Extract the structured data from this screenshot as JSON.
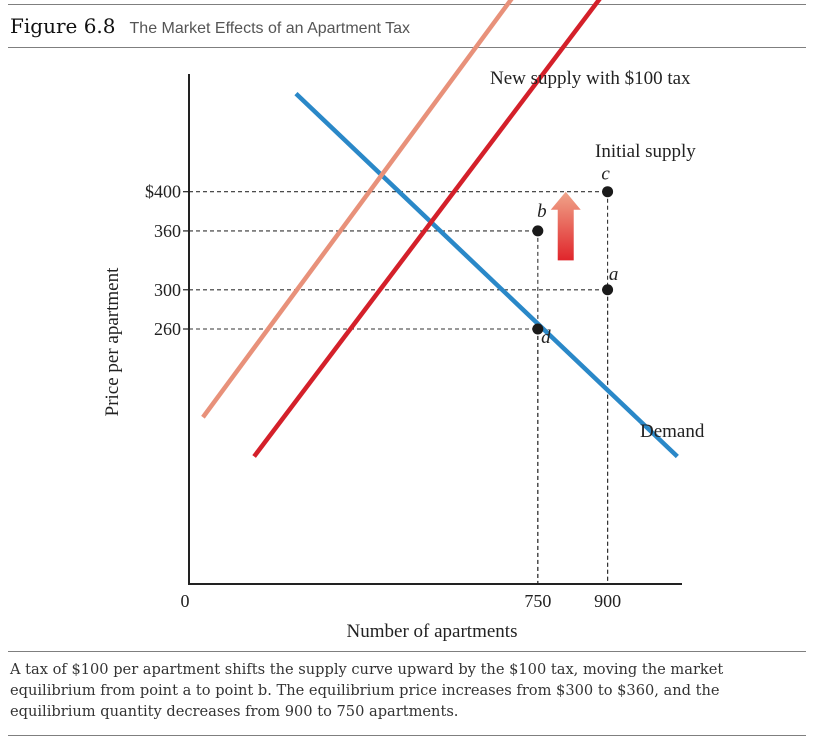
{
  "figure": {
    "number": "Figure 6.8",
    "title": "The Market Effects of an Apartment Tax"
  },
  "caption": "A tax of $100 per apartment shifts the supply curve upward by the $100 tax, moving the market equilibrium from point a to point b. The equilibrium price increases from $300 to $360, and the equilibrium quantity decreases from 900 to 750 apartments.",
  "colors": {
    "demand": "#2a88c8",
    "initial_supply": "#d4202a",
    "new_supply": "#e8917a",
    "arrow_top": "#f0a58a",
    "arrow_bottom": "#e0252b",
    "points": "#1a1a1a"
  },
  "chart_data": {
    "type": "line",
    "xlabel": "Number of apartments",
    "ylabel": "Price per apartment",
    "x_ticks": [
      {
        "value": 0,
        "label": "0"
      },
      {
        "value": 750,
        "label": "750"
      },
      {
        "value": 900,
        "label": "900"
      }
    ],
    "y_ticks": [
      {
        "value": 260,
        "label": "260"
      },
      {
        "value": 300,
        "label": "300"
      },
      {
        "value": 360,
        "label": "360"
      },
      {
        "value": 400,
        "label": "$400"
      }
    ],
    "xlim": [
      0,
      1060
    ],
    "ylim": [
      0,
      520
    ],
    "grid": false,
    "series": [
      {
        "name": "Demand",
        "key": "demand",
        "points": [
          [
            230,
            500
          ],
          [
            1050,
            130
          ]
        ]
      },
      {
        "name": "Initial supply",
        "key": "initial_supply",
        "points": [
          [
            140,
            130
          ],
          [
            1000,
            670
          ]
        ]
      },
      {
        "name": "New supply with $100 tax",
        "key": "new_supply",
        "points": [
          [
            30,
            170
          ],
          [
            870,
            710
          ]
        ]
      }
    ],
    "points": [
      {
        "label": "a",
        "x": 900,
        "y": 300
      },
      {
        "label": "b",
        "x": 750,
        "y": 360
      },
      {
        "label": "c",
        "x": 900,
        "y": 400
      },
      {
        "label": "d",
        "x": 750,
        "y": 260
      }
    ],
    "guides": [
      {
        "x": 900,
        "y": 400
      },
      {
        "x": 750,
        "y": 360
      },
      {
        "x": 900,
        "y": 300
      },
      {
        "x": 750,
        "y": 260
      }
    ],
    "annotations": [
      {
        "type": "arrow",
        "direction": "up",
        "from": [
          810,
          330
        ],
        "to": [
          810,
          400
        ],
        "meaning": "upward shift of supply by $100 tax"
      }
    ]
  }
}
